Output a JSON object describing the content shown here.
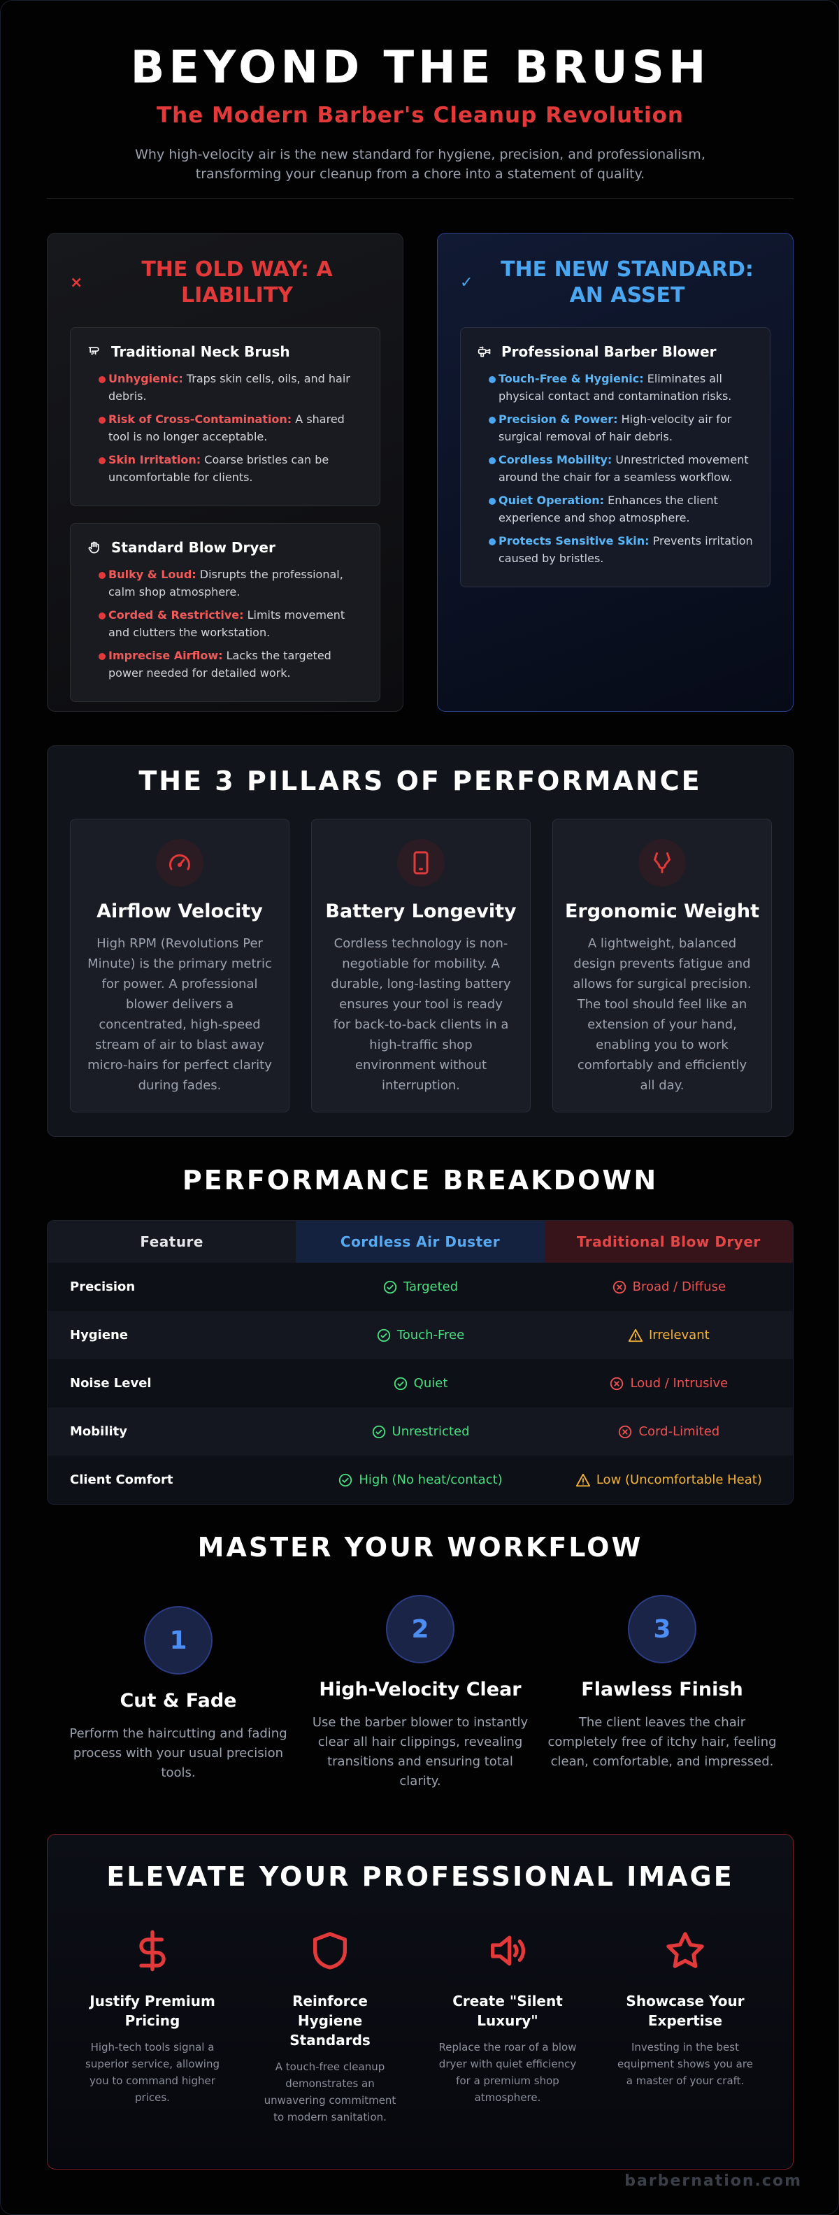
{
  "header": {
    "title": "BEYOND THE BRUSH",
    "subtitle": "The Modern Barber's Cleanup Revolution",
    "description": "Why high-velocity air is the new standard for hygiene, precision, and professionalism, transforming your cleanup from a chore into a statement of quality."
  },
  "old_way": {
    "mark": "×",
    "title": "THE OLD WAY: A LIABILITY",
    "tools": [
      {
        "title": "Traditional Neck Brush",
        "icon": "brush-icon",
        "points": [
          {
            "label": "Unhygienic:",
            "text": " Traps skin cells, oils, and hair debris."
          },
          {
            "label": "Risk of Cross-Contamination:",
            "text": " A shared tool is no longer acceptable."
          },
          {
            "label": "Skin Irritation:",
            "text": " Coarse bristles can be uncomfortable for clients."
          }
        ]
      },
      {
        "title": "Standard Blow Dryer",
        "icon": "hand-icon",
        "points": [
          {
            "label": "Bulky & Loud:",
            "text": " Disrupts the professional, calm shop atmosphere."
          },
          {
            "label": "Corded & Restrictive:",
            "text": " Limits movement and clutters the workstation."
          },
          {
            "label": "Imprecise Airflow:",
            "text": " Lacks the targeted power needed for detailed work."
          }
        ]
      }
    ]
  },
  "new_standard": {
    "mark": "✓",
    "title": "THE NEW STANDARD: AN ASSET",
    "tool": {
      "title": "Professional Barber Blower",
      "icon": "blower-icon",
      "points": [
        {
          "label": "Touch-Free & Hygienic:",
          "text": " Eliminates all physical contact and contamination risks."
        },
        {
          "label": "Precision & Power:",
          "text": " High-velocity air for surgical removal of hair debris."
        },
        {
          "label": "Cordless Mobility:",
          "text": " Unrestricted movement around the chair for a seamless workflow."
        },
        {
          "label": "Quiet Operation:",
          "text": " Enhances the client experience and shop atmosphere."
        },
        {
          "label": "Protects Sensitive Skin:",
          "text": " Prevents irritation caused by bristles."
        }
      ]
    }
  },
  "pillars": {
    "title": "THE 3 PILLARS OF PERFORMANCE",
    "items": [
      {
        "icon": "gauge-icon",
        "title": "Airflow Velocity",
        "text": "High RPM (Revolutions Per Minute) is the primary metric for power. A professional blower delivers a concentrated, high-speed stream of air to blast away micro-hairs for perfect clarity during fades."
      },
      {
        "icon": "smartphone-icon",
        "title": "Battery Longevity",
        "text": "Cordless technology is non-negotiable for mobility. A durable, long-lasting battery ensures your tool is ready for back-to-back clients in a high-traffic shop environment without interruption."
      },
      {
        "icon": "hand-icon",
        "title": "Ergonomic Weight",
        "text": "A lightweight, balanced design prevents fatigue and allows for surgical precision. The tool should feel like an extension of your hand, enabling you to work comfortably and efficiently all day."
      }
    ]
  },
  "breakdown": {
    "title": "PERFORMANCE BREAKDOWN",
    "columns": [
      "Feature",
      "Cordless Air Duster",
      "Traditional Blow Dryer"
    ],
    "rows": [
      {
        "feature": "Precision",
        "air": "Targeted",
        "air_status": "ok",
        "dryer": "Broad / Diffuse",
        "dryer_status": "bad"
      },
      {
        "feature": "Hygiene",
        "air": "Touch-Free",
        "air_status": "ok",
        "dryer": "Irrelevant",
        "dryer_status": "warn"
      },
      {
        "feature": "Noise Level",
        "air": "Quiet",
        "air_status": "ok",
        "dryer": "Loud / Intrusive",
        "dryer_status": "bad"
      },
      {
        "feature": "Mobility",
        "air": "Unrestricted",
        "air_status": "ok",
        "dryer": "Cord-Limited",
        "dryer_status": "bad"
      },
      {
        "feature": "Client Comfort",
        "air": "High (No heat/contact)",
        "air_status": "ok",
        "dryer": "Low (Uncomfortable Heat)",
        "dryer_status": "warn"
      }
    ]
  },
  "workflow": {
    "title": "MASTER YOUR WORKFLOW",
    "steps": [
      {
        "num": "1",
        "title": "Cut & Fade",
        "text": "Perform the haircutting and fading process with your usual precision tools."
      },
      {
        "num": "2",
        "title": "High-Velocity Clear",
        "text": "Use the barber blower to instantly clear all hair clippings, revealing transitions and ensuring total clarity."
      },
      {
        "num": "3",
        "title": "Flawless Finish",
        "text": "The client leaves the chair completely free of itchy hair, feeling clean, comfortable, and impressed."
      }
    ]
  },
  "elevate": {
    "title": "ELEVATE YOUR PROFESSIONAL IMAGE",
    "items": [
      {
        "icon": "dollar-icon",
        "title": "Justify Premium Pricing",
        "text": "High-tech tools signal a superior service, allowing you to command higher prices."
      },
      {
        "icon": "shield-icon",
        "title": "Reinforce Hygiene Standards",
        "text": "A touch-free cleanup demonstrates an unwavering commitment to modern sanitation."
      },
      {
        "icon": "speaker-icon",
        "title": "Create \"Silent Luxury\"",
        "text": "Replace the roar of a blow dryer with quiet efficiency for a premium shop atmosphere."
      },
      {
        "icon": "star-icon",
        "title": "Showcase Your Expertise",
        "text": "Investing in the best equipment shows you are a master of your craft."
      }
    ]
  },
  "footer": {
    "site": "barbernation.com"
  },
  "colors": {
    "accent_red": "#e23a3a",
    "accent_blue": "#4aa6f0",
    "ok_green": "#4ade80",
    "warn_amber": "#f5b43a"
  }
}
